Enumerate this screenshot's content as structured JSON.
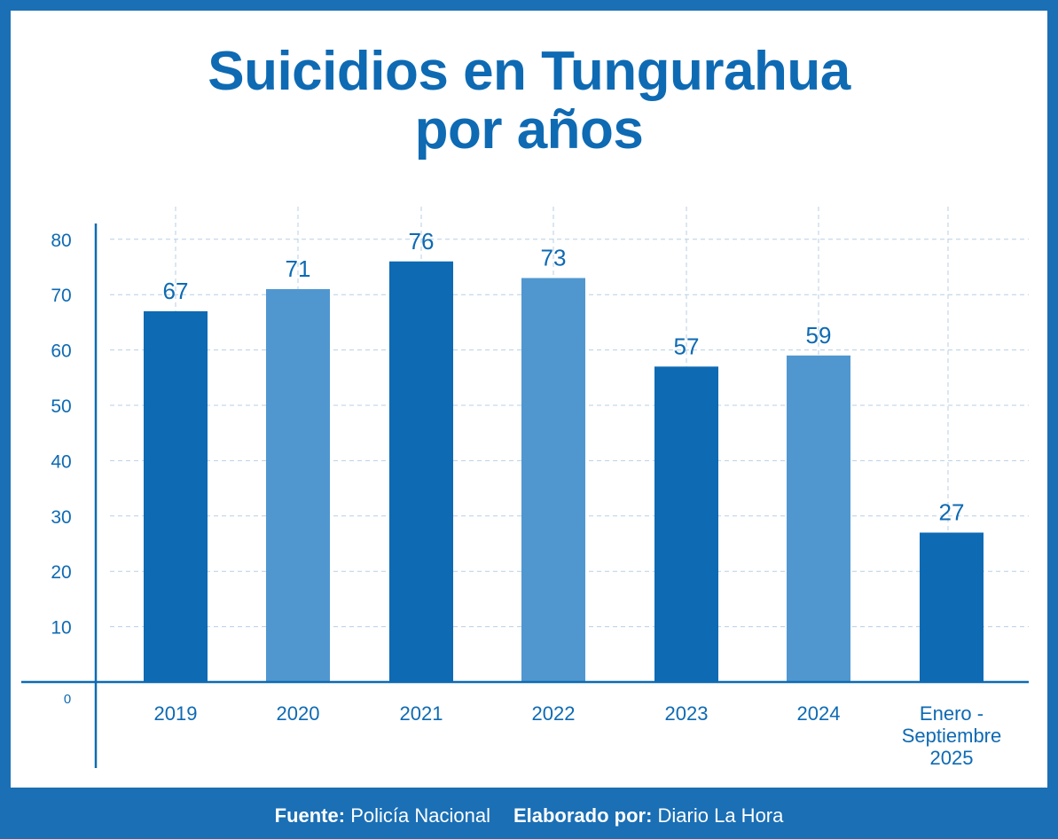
{
  "chart_data": {
    "type": "bar",
    "title": [
      "Suicidios en Tungurahua",
      "por años"
    ],
    "categories": [
      "2019",
      "2020",
      "2021",
      "2022",
      "2023",
      "2024",
      [
        "Enero -",
        "Septiembre",
        "2025"
      ]
    ],
    "values": [
      67,
      71,
      76,
      73,
      57,
      59,
      27
    ],
    "ylim": [
      0,
      80
    ],
    "yticks": [
      0,
      10,
      20,
      30,
      40,
      50,
      60,
      70,
      80
    ],
    "grid": true,
    "colors": [
      "#0e6ab3",
      "#5097d0",
      "#0e6ab3",
      "#5097d0",
      "#0e6ab3",
      "#5097d0",
      "#0e6ab3"
    ]
  },
  "colors": {
    "frame": "#1a6fb5",
    "accent": "#0e6ab3",
    "grid": "#b7cfe6"
  },
  "footer": {
    "source_label": "Fuente:",
    "source_value": "Policía Nacional",
    "author_label": "Elaborado por:",
    "author_value": "Diario La Hora"
  }
}
